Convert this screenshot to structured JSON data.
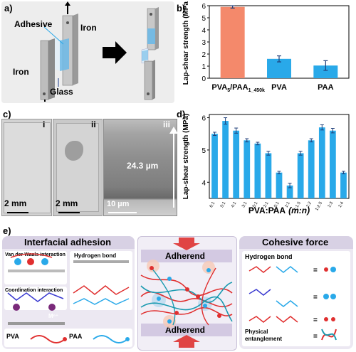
{
  "panels": {
    "a": {
      "letter": "a)",
      "labels": {
        "adhesive": "Adhesive",
        "iron_top": "Iron",
        "iron_bottom": "Iron",
        "glass": "Glass"
      }
    },
    "b": {
      "letter": "b)"
    },
    "c": {
      "letter": "c)",
      "subpanels": [
        "i",
        "ii",
        "iii"
      ],
      "scale_bars": [
        "2 mm",
        "2 mm",
        "10 µm"
      ],
      "thickness": "24.3 µm"
    },
    "d": {
      "letter": "d)"
    },
    "e": {
      "letter": "e)",
      "interfacial_title": "Interfacial adhesion",
      "cohesive_title": "Cohesive force",
      "vdw": "Van der Waals interaction",
      "hbond_left": "Hydrogen bond",
      "coordination": "Coordination interaction",
      "hbond_right": "Hydrogen bond",
      "physical": "Physical\nentanglement",
      "adherend_top": "Adherend",
      "adherend_bottom": "Adherend",
      "pva_label": "PVA",
      "paa_label": "PAA",
      "metal": "Mⁿ⁺"
    }
  },
  "chart_data": [
    {
      "type": "bar",
      "id": "b",
      "categories": [
        "PVA5/PAA1_450k",
        "PVA",
        "PAA"
      ],
      "values": [
        5.9,
        1.6,
        1.05
      ],
      "errors": [
        0.1,
        0.25,
        0.4
      ],
      "colors": [
        "#F4896B",
        "#29A9E9",
        "#29A9E9"
      ],
      "ylabel": "Lap-shear strength (MPa)",
      "ylim": [
        0,
        6
      ],
      "yticks": [
        "0",
        "1",
        "2",
        "3",
        "4",
        "5",
        "6"
      ],
      "xtick_labels": {
        "first_main": "PVA",
        "first_sub1": "5",
        "first_mid": "/PAA",
        "first_sub2": "1_450k",
        "second": "PVA",
        "third": "PAA"
      }
    },
    {
      "type": "bar",
      "id": "d",
      "categories": [
        "6:1",
        "5:1",
        "4:1",
        "3:1",
        "2.5:1",
        "2:1",
        "1.5:1",
        "1:1",
        "1:1.5",
        "1:2",
        "1:2.5",
        "1:3",
        "1:4"
      ],
      "values": [
        5.5,
        5.9,
        5.6,
        5.3,
        5.2,
        4.9,
        4.3,
        3.9,
        4.9,
        5.3,
        5.7,
        5.6,
        4.3
      ],
      "errors": [
        0.05,
        0.1,
        0.08,
        0.05,
        0.04,
        0.06,
        0.04,
        0.07,
        0.06,
        0.05,
        0.08,
        0.07,
        0.04
      ],
      "color": "#29A9E9",
      "ylabel": "Lap-shear strength (MPa)",
      "xlabel_main": "PVA:PAA",
      "xlabel_paren": "(m:n)",
      "ylim": [
        3.5,
        6.1
      ],
      "yticks": [
        4,
        5,
        6
      ]
    }
  ]
}
